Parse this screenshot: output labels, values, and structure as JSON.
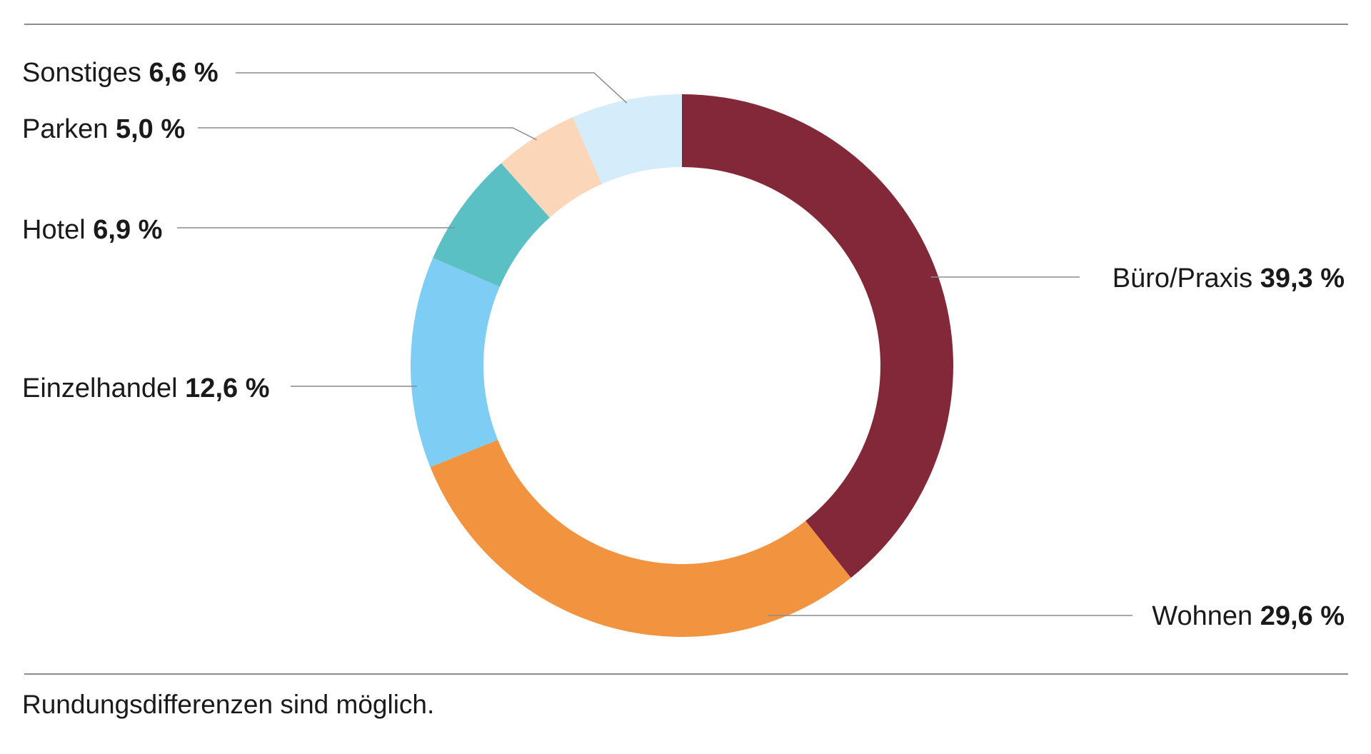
{
  "chart_data": {
    "type": "pie",
    "style": "donut",
    "title": "",
    "slices": [
      {
        "label": "Büro/Praxis",
        "value": 39.3,
        "display": "39,3 %",
        "color": "#832838"
      },
      {
        "label": "Wohnen",
        "value": 29.6,
        "display": "29,6 %",
        "color": "#f29340"
      },
      {
        "label": "Einzelhandel",
        "value": 12.6,
        "display": "12,6 %",
        "color": "#7ecdf4"
      },
      {
        "label": "Hotel",
        "value": 6.9,
        "display": "6,9 %",
        "color": "#5bc0c3"
      },
      {
        "label": "Parken",
        "value": 5.0,
        "display": "5,0 %",
        "color": "#fcd6b8"
      },
      {
        "label": "Sonstiges",
        "value": 6.6,
        "display": "6,6 %",
        "color": "#d5ecfa"
      }
    ],
    "start_angle": "12 o'clock",
    "direction": "clockwise",
    "legend": "none",
    "labels": "outside with leader lines"
  },
  "footnote": "Rundungsdifferenzen sind möglich.",
  "colors": {
    "rule": "#8c8c8c",
    "leader": "#8c8c8c",
    "text": "#1a1a1a"
  }
}
